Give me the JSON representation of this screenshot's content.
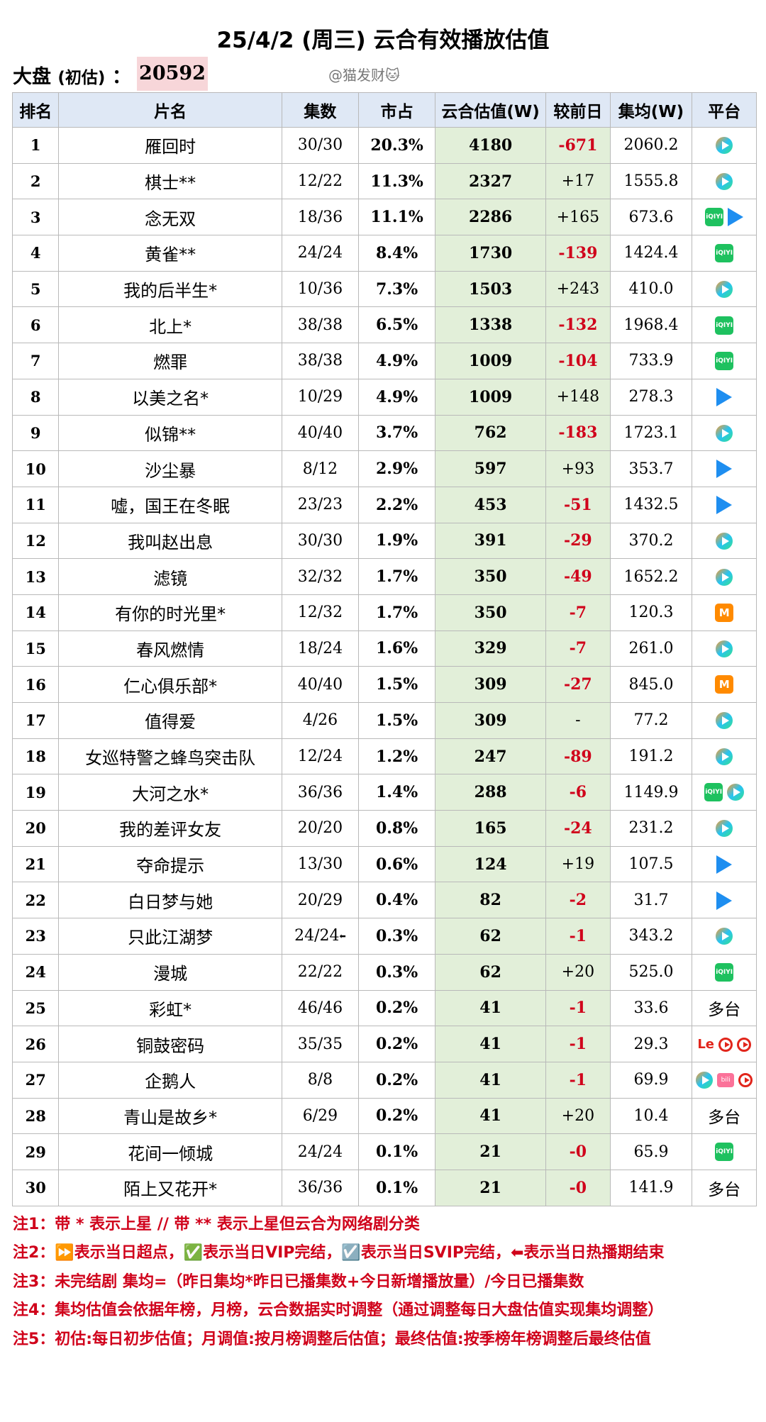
{
  "title": "25/4/2 (周三) 云合有效播放估值",
  "dapan": {
    "label": "大盘",
    "paren": "(初估)",
    "colon": "：",
    "value": "20592"
  },
  "watermark": "@猫发财🐱",
  "columns": [
    "排名",
    "片名",
    "集数",
    "市占",
    "云合估值(W)",
    "较前日",
    "集均(W)",
    "平台"
  ],
  "rows": [
    {
      "rank": "1",
      "name": "雁回时",
      "eps": "30/30",
      "share": "20.3%",
      "est": "4180",
      "prev": "-671",
      "avg": "2060.2",
      "platform": [
        "tencent-video"
      ]
    },
    {
      "rank": "2",
      "name": "棋士**",
      "eps": "12/22",
      "share": "11.3%",
      "est": "2327",
      "prev": "+17",
      "avg": "1555.8",
      "platform": [
        "tencent-video"
      ]
    },
    {
      "rank": "3",
      "name": "念无双",
      "eps": "18/36",
      "share": "11.1%",
      "est": "2286",
      "prev": "+165",
      "avg": "673.6",
      "platform": [
        "iqiyi",
        "youku"
      ]
    },
    {
      "rank": "4",
      "name": "黄雀**",
      "eps": "24/24",
      "share": "8.4%",
      "est": "1730",
      "prev": "-139",
      "avg": "1424.4",
      "platform": [
        "iqiyi"
      ]
    },
    {
      "rank": "5",
      "name": "我的后半生*",
      "eps": "10/36",
      "share": "7.3%",
      "est": "1503",
      "prev": "+243",
      "avg": "410.0",
      "platform": [
        "tencent-video"
      ]
    },
    {
      "rank": "6",
      "name": "北上*",
      "eps": "38/38",
      "share": "6.5%",
      "est": "1338",
      "prev": "-132",
      "avg": "1968.4",
      "platform": [
        "iqiyi"
      ]
    },
    {
      "rank": "7",
      "name": "燃罪",
      "eps": "38/38",
      "share": "4.9%",
      "est": "1009",
      "prev": "-104",
      "avg": "733.9",
      "platform": [
        "iqiyi"
      ]
    },
    {
      "rank": "8",
      "name": "以美之名*",
      "eps": "10/29",
      "share": "4.9%",
      "est": "1009",
      "prev": "+148",
      "avg": "278.3",
      "platform": [
        "youku"
      ]
    },
    {
      "rank": "9",
      "name": "似锦**",
      "eps": "40/40",
      "share": "3.7%",
      "est": "762",
      "prev": "-183",
      "avg": "1723.1",
      "platform": [
        "tencent-video"
      ]
    },
    {
      "rank": "10",
      "name": "沙尘暴",
      "eps": "8/12",
      "share": "2.9%",
      "est": "597",
      "prev": "+93",
      "avg": "353.7",
      "platform": [
        "youku"
      ]
    },
    {
      "rank": "11",
      "name": "嘘，国王在冬眠",
      "eps": "23/23",
      "share": "2.2%",
      "est": "453",
      "prev": "-51",
      "avg": "1432.5",
      "platform": [
        "youku"
      ]
    },
    {
      "rank": "12",
      "name": "我叫赵出息",
      "eps": "30/30",
      "share": "1.9%",
      "est": "391",
      "prev": "-29",
      "avg": "370.2",
      "platform": [
        "tencent-video"
      ]
    },
    {
      "rank": "13",
      "name": "滤镜",
      "eps": "32/32",
      "share": "1.7%",
      "est": "350",
      "prev": "-49",
      "avg": "1652.2",
      "platform": [
        "tencent-video"
      ]
    },
    {
      "rank": "14",
      "name": "有你的时光里*",
      "eps": "12/32",
      "share": "1.7%",
      "est": "350",
      "prev": "-7",
      "avg": "120.3",
      "platform": [
        "mango"
      ]
    },
    {
      "rank": "15",
      "name": "春风燃情",
      "eps": "18/24",
      "share": "1.6%",
      "est": "329",
      "prev": "-7",
      "avg": "261.0",
      "platform": [
        "tencent-video"
      ]
    },
    {
      "rank": "16",
      "name": "仁心俱乐部*",
      "eps": "40/40",
      "share": "1.5%",
      "est": "309",
      "prev": "-27",
      "avg": "845.0",
      "platform": [
        "mango"
      ]
    },
    {
      "rank": "17",
      "name": "值得爱",
      "eps": "4/26",
      "share": "1.5%",
      "est": "309",
      "prev": "-",
      "avg": "77.2",
      "platform": [
        "tencent-video"
      ]
    },
    {
      "rank": "18",
      "name": "女巡特警之蜂鸟突击队",
      "eps": "12/24",
      "share": "1.2%",
      "est": "247",
      "prev": "-89",
      "avg": "191.2",
      "platform": [
        "tencent-video"
      ]
    },
    {
      "rank": "19",
      "name": "大河之水*",
      "eps": "36/36",
      "share": "1.4%",
      "est": "288",
      "prev": "-6",
      "avg": "1149.9",
      "platform": [
        "iqiyi",
        "tencent-video"
      ]
    },
    {
      "rank": "20",
      "name": "我的差评女友",
      "eps": "20/20",
      "share": "0.8%",
      "est": "165",
      "prev": "-24",
      "avg": "231.2",
      "platform": [
        "tencent-video"
      ]
    },
    {
      "rank": "21",
      "name": "夺命提示",
      "eps": "13/30",
      "share": "0.6%",
      "est": "124",
      "prev": "+19",
      "avg": "107.5",
      "platform": [
        "youku"
      ]
    },
    {
      "rank": "22",
      "name": "白日梦与她",
      "eps": "20/29",
      "share": "0.4%",
      "est": "82",
      "prev": "-2",
      "avg": "31.7",
      "platform": [
        "youku"
      ]
    },
    {
      "rank": "23",
      "name": "只此江湖梦",
      "eps": "24/24",
      "share": "0.3%",
      "est": "62",
      "prev": "-1",
      "avg": "343.2",
      "platform": [
        "tencent-video"
      ],
      "end": true
    },
    {
      "rank": "24",
      "name": "漫城",
      "eps": "22/22",
      "share": "0.3%",
      "est": "62",
      "prev": "+20",
      "avg": "525.0",
      "platform": [
        "iqiyi"
      ]
    },
    {
      "rank": "25",
      "name": "彩虹*",
      "eps": "46/46",
      "share": "0.2%",
      "est": "41",
      "prev": "-1",
      "avg": "33.6",
      "platform": [
        "多台"
      ]
    },
    {
      "rank": "26",
      "name": "铜鼓密码",
      "eps": "35/35",
      "share": "0.2%",
      "est": "41",
      "prev": "-1",
      "avg": "29.3",
      "platform": [
        "le",
        "youku-circle",
        "youku-circle"
      ]
    },
    {
      "rank": "27",
      "name": "企鹅人",
      "eps": "8/8",
      "share": "0.2%",
      "est": "41",
      "prev": "-1",
      "avg": "69.9",
      "platform": [
        "tencent-video",
        "bilibili",
        "youku-circle"
      ]
    },
    {
      "rank": "28",
      "name": "青山是故乡*",
      "eps": "6/29",
      "share": "0.2%",
      "est": "41",
      "prev": "+20",
      "avg": "10.4",
      "platform": [
        "多台"
      ]
    },
    {
      "rank": "29",
      "name": "花间一倾城",
      "eps": "24/24",
      "share": "0.1%",
      "est": "21",
      "prev": "-0",
      "avg": "65.9",
      "platform": [
        "iqiyi"
      ]
    },
    {
      "rank": "30",
      "name": "陌上又花开*",
      "eps": "36/36",
      "share": "0.1%",
      "est": "21",
      "prev": "-0",
      "avg": "141.9",
      "platform": [
        "多台"
      ]
    }
  ],
  "notes": [
    "注1：带 * 表示上星 // 带 ** 表示上星但云合为网络剧分类",
    "注2：⏩表示当日超点，✅表示当日VIP完结，☑️表示当日SVIP完结，⬅表示当日热播期结束",
    "注3：未完结剧 集均=（昨日集均*昨日已播集数+今日新增播放量）/今日已播集数",
    "注4：集均估值会依据年榜，月榜，云合数据实时调整（通过调整每日大盘估值实现集均调整）",
    "注5：初估:每日初步估值；月调值:按月榜调整后估值；最终估值:按季榜年榜调整后最终估值"
  ],
  "platform_labels": {
    "iqiyi": "iQIYI",
    "mango": "M",
    "le": "Le",
    "bilibili": "bili"
  },
  "colors": {
    "negative": "#d0021b",
    "header_bg": "#dfe8f5",
    "highlight_bg": "#e2efd9",
    "dapan_bg": "#f7d6d9"
  }
}
